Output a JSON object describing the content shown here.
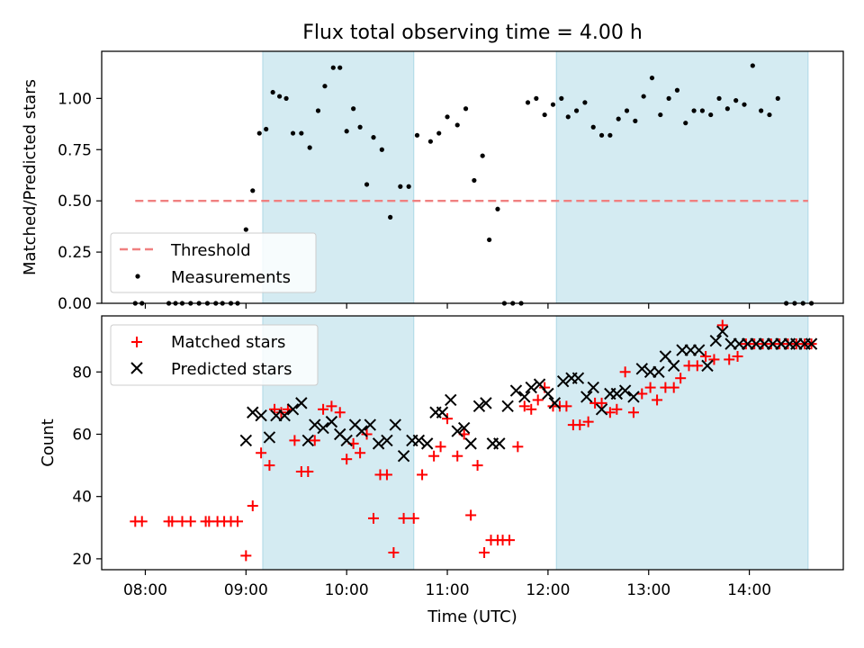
{
  "chart_data": [
    {
      "type": "scatter",
      "title": "Flux total observing time = 4.00 h",
      "ylabel": "Matched/Predicted stars",
      "xlabel": "",
      "x_axis_kind": "time",
      "xlim": [
        "07:34",
        "14:56"
      ],
      "ylim": [
        0.0,
        1.23
      ],
      "yticks": [
        "0.00",
        "0.25",
        "0.50",
        "0.75",
        "1.00"
      ],
      "shaded_windows": [
        [
          "09:10",
          "10:40"
        ],
        [
          "12:05",
          "14:35"
        ]
      ],
      "shade_color": "#add8e6",
      "legend_placement": "lower-left",
      "series": [
        {
          "name": "Threshold",
          "style": "dashed-line",
          "color": "#f08080",
          "x": [
            "07:54",
            "14:35"
          ],
          "y": [
            0.5,
            0.5
          ]
        },
        {
          "name": "Measurements",
          "style": "dot",
          "color": "#000000",
          "x": [
            "07:54",
            "07:58",
            "08:14",
            "08:18",
            "08:22",
            "08:27",
            "08:32",
            "08:37",
            "08:42",
            "08:46",
            "08:51",
            "08:55",
            "09:00",
            "09:04",
            "09:08",
            "09:12",
            "09:16",
            "09:20",
            "09:24",
            "09:28",
            "09:33",
            "09:38",
            "09:43",
            "09:47",
            "09:52",
            "09:56",
            "10:00",
            "10:04",
            "10:08",
            "10:12",
            "10:16",
            "10:21",
            "10:26",
            "10:32",
            "10:37",
            "10:42",
            "10:50",
            "10:55",
            "11:00",
            "11:06",
            "11:11",
            "11:16",
            "11:21",
            "11:25",
            "11:30",
            "11:34",
            "11:39",
            "11:44",
            "11:48",
            "11:53",
            "11:58",
            "12:03",
            "12:08",
            "12:12",
            "12:17",
            "12:22",
            "12:27",
            "12:32",
            "12:37",
            "12:42",
            "12:47",
            "12:52",
            "12:57",
            "13:02",
            "13:07",
            "13:12",
            "13:17",
            "13:22",
            "13:27",
            "13:32",
            "13:37",
            "13:42",
            "13:47",
            "13:52",
            "13:57",
            "14:02",
            "14:07",
            "14:12",
            "14:17",
            "14:22",
            "14:27",
            "14:32",
            "14:37"
          ],
          "y": [
            0,
            0,
            0,
            0,
            0,
            0,
            0,
            0,
            0,
            0,
            0,
            0,
            0.36,
            0.55,
            0.83,
            0.85,
            1.03,
            1.01,
            1.0,
            0.83,
            0.83,
            0.76,
            0.94,
            1.06,
            1.15,
            1.15,
            0.84,
            0.95,
            0.86,
            0.58,
            0.81,
            0.75,
            0.42,
            0.57,
            0.57,
            0.82,
            0.79,
            0.83,
            0.91,
            0.87,
            0.95,
            0.6,
            0.72,
            0.31,
            0.46,
            0,
            0,
            0,
            0.98,
            1.0,
            0.92,
            0.97,
            1.0,
            0.91,
            0.94,
            0.98,
            0.86,
            0.82,
            0.82,
            0.9,
            0.94,
            0.89,
            1.01,
            1.1,
            0.92,
            1.0,
            1.04,
            0.88,
            0.94,
            0.94,
            0.92,
            1.0,
            0.95,
            0.99,
            0.97,
            1.16,
            0.94,
            0.92,
            1.0,
            0,
            0,
            0,
            0
          ]
        }
      ]
    },
    {
      "type": "scatter",
      "title": "",
      "ylabel": "Count",
      "xlabel": "Time (UTC)",
      "x_axis_kind": "time",
      "xlim": [
        "07:34",
        "14:56"
      ],
      "ylim": [
        16.5,
        98
      ],
      "yticks": [
        "20",
        "40",
        "60",
        "80"
      ],
      "xticks": [
        "08:00",
        "09:00",
        "10:00",
        "11:00",
        "12:00",
        "13:00",
        "14:00"
      ],
      "shaded_windows": [
        [
          "09:10",
          "10:40"
        ],
        [
          "12:05",
          "14:35"
        ]
      ],
      "shade_color": "#add8e6",
      "legend_placement": "upper-left",
      "series": [
        {
          "name": "Matched stars",
          "marker": "plus",
          "color": "#ff0000",
          "x": [
            "07:54",
            "07:58",
            "08:14",
            "08:16",
            "08:22",
            "08:27",
            "08:36",
            "08:38",
            "08:43",
            "08:47",
            "08:51",
            "08:55",
            "09:00",
            "09:04",
            "09:09",
            "09:14",
            "09:17",
            "09:21",
            "09:25",
            "09:29",
            "09:33",
            "09:37",
            "09:41",
            "09:46",
            "09:51",
            "09:56",
            "10:00",
            "10:04",
            "10:08",
            "10:12",
            "10:16",
            "10:20",
            "10:24",
            "10:28",
            "10:34",
            "10:40",
            "10:45",
            "10:52",
            "10:56",
            "11:00",
            "11:06",
            "11:10",
            "11:14",
            "11:18",
            "11:22",
            "11:26",
            "11:30",
            "11:33",
            "11:37",
            "11:42",
            "11:46",
            "11:50",
            "11:54",
            "11:58",
            "12:03",
            "12:07",
            "12:11",
            "12:15",
            "12:19",
            "12:24",
            "12:28",
            "12:32",
            "12:37",
            "12:41",
            "12:46",
            "12:51",
            "12:56",
            "13:01",
            "13:05",
            "13:10",
            "13:15",
            "13:19",
            "13:24",
            "13:29",
            "13:34",
            "13:39",
            "13:44",
            "13:48",
            "13:53",
            "13:58",
            "14:03",
            "14:08",
            "14:13",
            "14:18",
            "14:23",
            "14:28",
            "14:33",
            "14:37"
          ],
          "y": [
            32,
            32,
            32,
            32,
            32,
            32,
            32,
            32,
            32,
            32,
            32,
            32,
            21,
            37,
            54,
            50,
            68,
            67,
            68,
            58,
            48,
            48,
            58,
            68,
            69,
            67,
            52,
            57,
            54,
            60,
            33,
            47,
            47,
            22,
            33,
            33,
            47,
            53,
            56,
            65,
            53,
            60,
            34,
            50,
            22,
            26,
            26,
            26,
            26,
            56,
            69,
            68,
            71,
            75,
            69,
            69,
            69,
            63,
            63,
            64,
            70,
            70,
            67,
            68,
            80,
            67,
            73,
            75,
            71,
            75,
            75,
            78,
            82,
            82,
            85,
            84,
            95,
            84,
            85,
            89,
            89,
            89,
            89,
            89,
            89,
            89,
            89,
            89
          ]
        },
        {
          "name": "Predicted stars",
          "marker": "x",
          "color": "#000000",
          "x": [
            "09:00",
            "09:04",
            "09:09",
            "09:14",
            "09:18",
            "09:23",
            "09:28",
            "09:33",
            "09:37",
            "09:41",
            "09:46",
            "09:51",
            "09:56",
            "10:00",
            "10:05",
            "10:09",
            "10:14",
            "10:19",
            "10:24",
            "10:29",
            "10:34",
            "10:39",
            "10:43",
            "10:48",
            "10:53",
            "10:57",
            "11:02",
            "11:06",
            "11:10",
            "11:14",
            "11:19",
            "11:23",
            "11:27",
            "11:31",
            "11:36",
            "11:41",
            "11:46",
            "11:50",
            "11:55",
            "12:00",
            "12:04",
            "12:09",
            "12:14",
            "12:18",
            "12:23",
            "12:27",
            "12:32",
            "12:37",
            "12:41",
            "12:46",
            "12:51",
            "12:56",
            "13:01",
            "13:06",
            "13:10",
            "13:15",
            "13:20",
            "13:25",
            "13:30",
            "13:35",
            "13:40",
            "13:44",
            "13:49",
            "13:54",
            "13:59",
            "14:04",
            "14:09",
            "14:14",
            "14:19",
            "14:24",
            "14:28",
            "14:33",
            "14:37"
          ],
          "y": [
            58,
            67,
            66,
            59,
            66,
            66,
            68,
            70,
            58,
            63,
            62,
            64,
            60,
            58,
            63,
            61,
            63,
            57,
            58,
            63,
            53,
            58,
            58,
            57,
            67,
            67,
            71,
            61,
            62,
            57,
            69,
            70,
            57,
            57,
            69,
            74,
            72,
            75,
            76,
            73,
            70,
            77,
            78,
            78,
            72,
            75,
            68,
            73,
            73,
            74,
            72,
            81,
            80,
            80,
            85,
            82,
            87,
            87,
            87,
            82,
            90,
            93,
            89,
            89,
            89,
            89,
            89,
            89,
            89,
            89,
            89,
            89,
            89
          ]
        }
      ]
    }
  ]
}
